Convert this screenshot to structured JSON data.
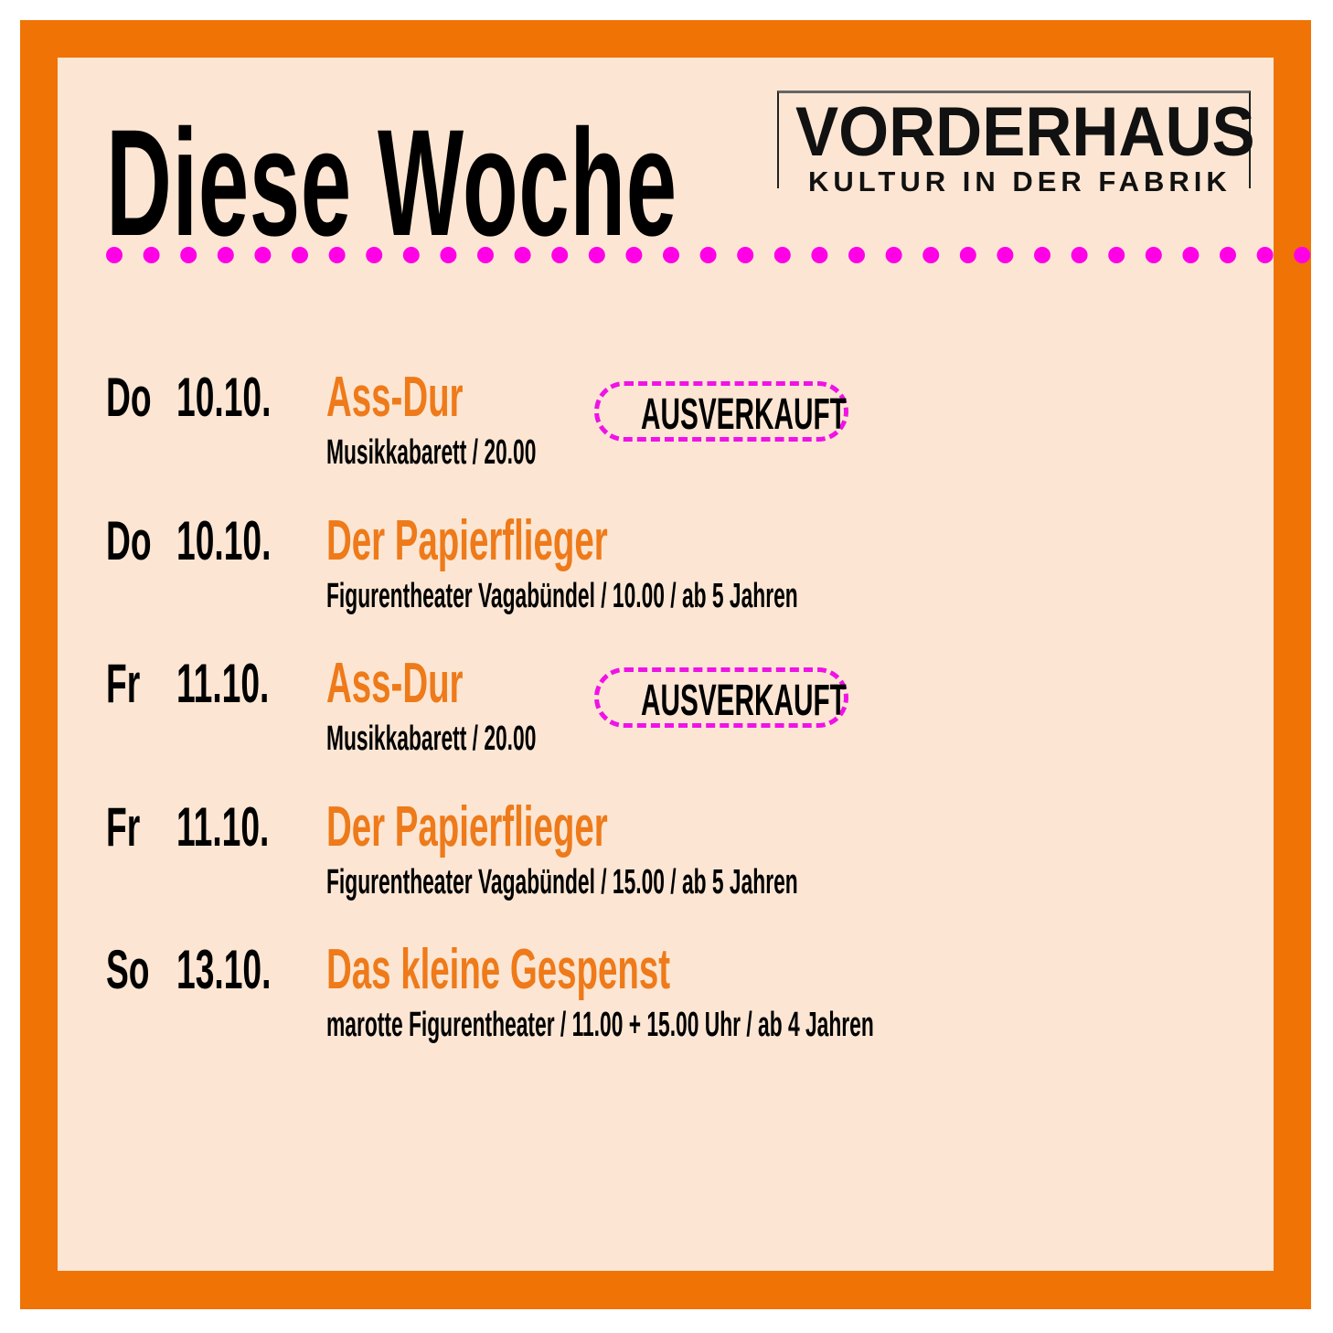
{
  "heading": "Diese Woche",
  "logo": {
    "name": "VORDERHAUS",
    "tagline": "KULTUR IN DER FABRIK"
  },
  "colors": {
    "frame": "#F07306",
    "background": "#FCE6D3",
    "accent_dots": "#FF00E6",
    "event_title": "#EE7A1A",
    "badge_border": "#F012E6"
  },
  "events": [
    {
      "day": "Do",
      "date": "10.10.",
      "title": "Ass-Dur",
      "details": "Musikkabarett / 20.00",
      "badge": "AUSVERKAUFT"
    },
    {
      "day": "Do",
      "date": "10.10.",
      "title": "Der Papierflieger",
      "details": "Figurentheater Vagabündel / 10.00 / ab 5 Jahren"
    },
    {
      "day": "Fr",
      "date": "11.10.",
      "title": "Ass-Dur",
      "details": "Musikkabarett / 20.00",
      "badge": "AUSVERKAUFT"
    },
    {
      "day": "Fr",
      "date": "11.10.",
      "title": "Der Papierflieger",
      "details": "Figurentheater Vagabündel / 15.00 / ab 5 Jahren"
    },
    {
      "day": "So",
      "date": "13.10.",
      "title": "Das kleine Gespenst",
      "details": "marotte Figurentheater / 11.00 + 15.00 Uhr / ab 4 Jahren"
    }
  ]
}
